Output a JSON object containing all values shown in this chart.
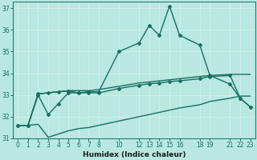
{
  "xlabel": "Humidex (Indice chaleur)",
  "background_color": "#b8e8e0",
  "grid_color": "#d0f0ea",
  "line_color": "#1a6e62",
  "xlim": [
    -0.5,
    23.5
  ],
  "ylim": [
    31,
    37.3
  ],
  "xticks": [
    0,
    1,
    2,
    3,
    4,
    5,
    6,
    7,
    8,
    10,
    12,
    13,
    14,
    15,
    16,
    18,
    19,
    21,
    22,
    23
  ],
  "yticks": [
    31,
    32,
    33,
    34,
    35,
    36,
    37
  ],
  "series": [
    {
      "x": [
        0,
        1,
        2,
        3,
        4,
        5,
        6,
        7,
        8,
        10,
        12,
        13,
        14,
        15,
        16,
        18,
        19,
        21,
        22,
        23
      ],
      "y": [
        31.6,
        31.6,
        33.0,
        32.1,
        32.6,
        33.1,
        33.1,
        33.15,
        33.15,
        35.0,
        35.4,
        36.2,
        35.75,
        37.1,
        35.75,
        35.3,
        33.9,
        33.5,
        32.85,
        32.45
      ],
      "marker": true,
      "lw": 1.0
    },
    {
      "x": [
        0,
        1,
        2,
        3,
        4,
        5,
        6,
        7,
        8,
        10,
        12,
        13,
        14,
        15,
        16,
        18,
        19,
        21,
        22,
        23
      ],
      "y": [
        31.6,
        31.6,
        33.05,
        33.1,
        33.15,
        33.2,
        33.2,
        33.2,
        33.25,
        33.4,
        33.55,
        33.6,
        33.65,
        33.7,
        33.75,
        33.85,
        33.9,
        33.95,
        33.95,
        33.95
      ],
      "marker": false,
      "lw": 1.0
    },
    {
      "x": [
        0,
        1,
        2,
        3,
        4,
        5,
        6,
        7,
        8,
        10,
        12,
        13,
        14,
        15,
        16,
        18,
        19,
        21,
        22,
        23
      ],
      "y": [
        31.6,
        31.6,
        31.65,
        31.05,
        31.2,
        31.35,
        31.45,
        31.5,
        31.6,
        31.8,
        32.0,
        32.1,
        32.2,
        32.3,
        32.4,
        32.55,
        32.7,
        32.85,
        32.95,
        32.95
      ],
      "marker": false,
      "lw": 1.0
    },
    {
      "x": [
        0,
        1,
        2,
        3,
        4,
        5,
        6,
        7,
        8,
        10,
        12,
        13,
        14,
        15,
        16,
        18,
        19,
        21,
        22,
        23
      ],
      "y": [
        31.6,
        31.6,
        33.05,
        33.1,
        33.15,
        33.18,
        33.1,
        33.1,
        33.1,
        33.3,
        33.45,
        33.52,
        33.55,
        33.62,
        33.65,
        33.75,
        33.85,
        33.9,
        32.85,
        32.45
      ],
      "marker": true,
      "lw": 1.0
    }
  ]
}
